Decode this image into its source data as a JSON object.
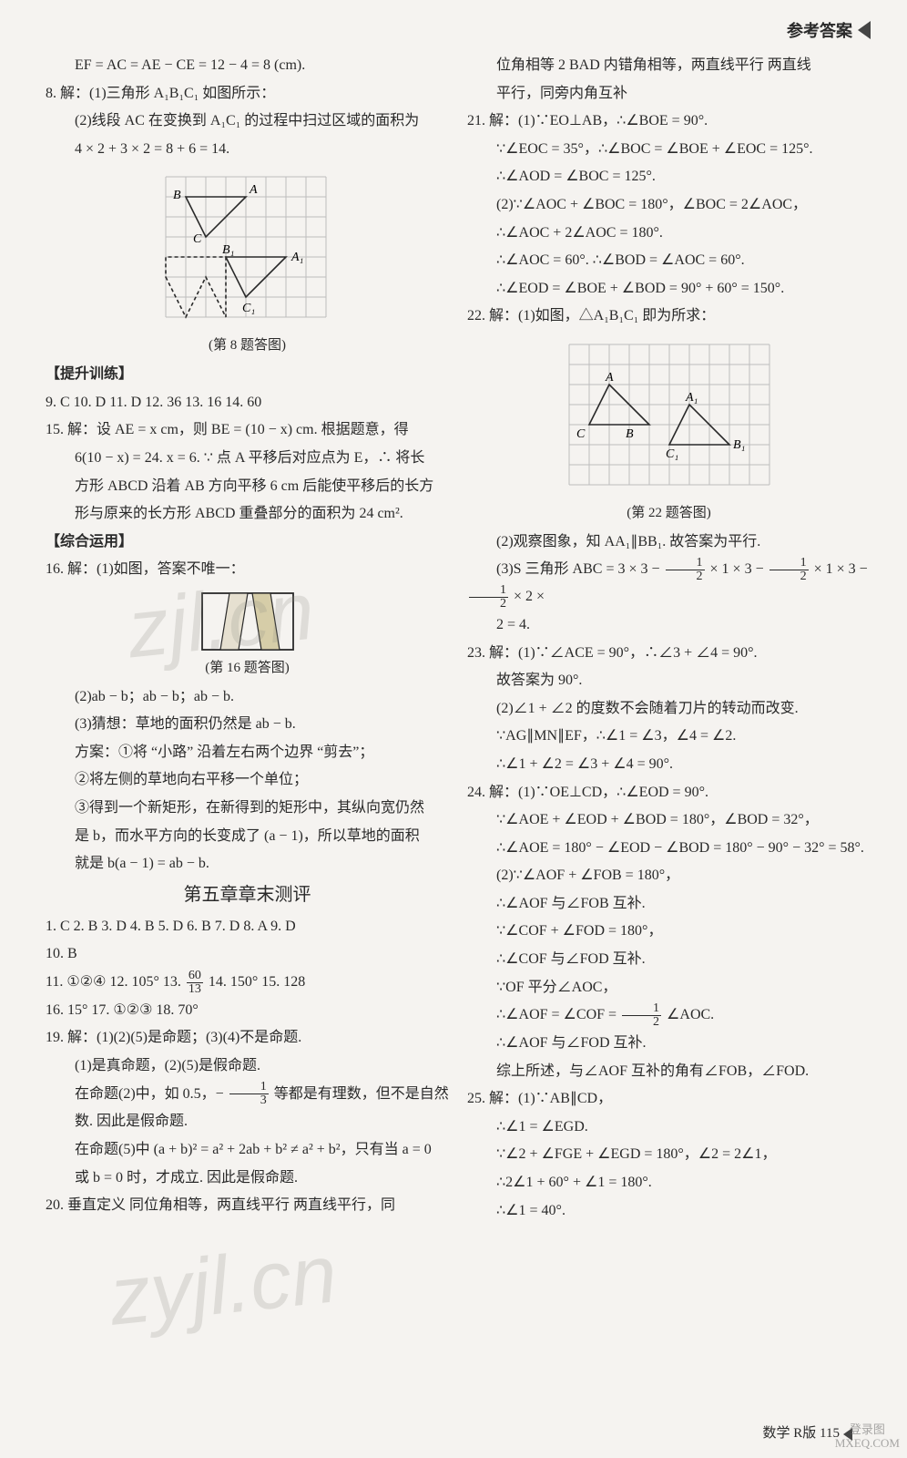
{
  "header": {
    "title": "参考答案"
  },
  "footer": {
    "page": "数学 R版 115",
    "badge_top": "登录图",
    "badge_bottom": "MXEQ.COM"
  },
  "watermark": {
    "wm1": "zjl.cn",
    "wm2": "zyjl.cn"
  },
  "left": {
    "l0": "EF = AC = AE − CE = 12 − 4 = 8  (cm).",
    "l1": "8. 解：(1)三角形 A₁B₁C₁ 如图所示：",
    "l2": "(2)线段 AC 在变换到 A₁C₁ 的过程中扫过区域的面积为",
    "l3": "4 × 2 + 3 × 2 = 8 + 6 = 14.",
    "fig8_caption": "(第 8 题答图)",
    "sec1": "【提升训练】",
    "l4": "9. C   10. D   11. D   12. 36   13. 16   14. 60",
    "l5": "15. 解：设 AE = x  cm，则 BE = (10 − x)  cm. 根据题意，得",
    "l6": "6(10 − x) = 24.  x = 6.  ∵ 点 A 平移后对应点为 E，∴ 将长",
    "l7": "方形 ABCD 沿着 AB 方向平移 6 cm 后能使平移后的长方",
    "l8": "形与原来的长方形 ABCD 重叠部分的面积为 24 cm².",
    "sec2": "【综合运用】",
    "l9": "16. 解：(1)如图，答案不唯一：",
    "fig16_caption": "(第 16 题答图)",
    "l10": "(2)ab − b；ab − b；ab − b.",
    "l11": "(3)猜想：草地的面积仍然是 ab − b.",
    "l12": "方案：①将 “小路” 沿着左右两个边界 “剪去”；",
    "l13": "②将左侧的草地向右平移一个单位；",
    "l14": "③得到一个新矩形，在新得到的矩形中，其纵向宽仍然",
    "l15": "是 b，而水平方向的长变成了 (a − 1)，所以草地的面积",
    "l16": "就是 b(a − 1) = ab − b.",
    "chapter": "第五章章末测评",
    "l17": "1. C   2. B   3. D   4. B   5. D   6. B   7. D   8. A   9. D",
    "l18": "10. B",
    "l19a": "11. ①②④   12. 105°   13. ",
    "l19b": "   14. 150°   15. 128",
    "frac_60_13_n": "60",
    "frac_60_13_d": "13",
    "l20": "16. 15°   17. ①②③   18. 70°",
    "l21": "19. 解：(1)(2)(5)是命题；(3)(4)不是命题.",
    "l22": "(1)是真命题，(2)(5)是假命题.",
    "l23a": "在命题(2)中，如 0.5，−",
    "l23b": "等都是有理数，但不是自然",
    "frac_1_3_n": "1",
    "frac_1_3_d": "3",
    "l24": "数. 因此是假命题.",
    "l25": "在命题(5)中  (a + b)² = a² + 2ab + b² ≠ a² + b²，只有当 a = 0",
    "l26": "或 b = 0 时，才成立. 因此是假命题.",
    "l27": "20. 垂直定义   同位角相等，两直线平行   两直线平行，同"
  },
  "right": {
    "r0": "位角相等   2   BAD   内错角相等，两直线平行   两直线",
    "r1": "平行，同旁内角互补",
    "r2": "21. 解：(1)∵EO⊥AB，∴∠BOE = 90°.",
    "r3": "∵∠EOC = 35°，∴∠BOC = ∠BOE + ∠EOC = 125°.",
    "r4": "∴∠AOD = ∠BOC = 125°.",
    "r5": "(2)∵∠AOC + ∠BOC = 180°，∠BOC = 2∠AOC，",
    "r6": "∴∠AOC + 2∠AOC = 180°.",
    "r7": "∴∠AOC = 60°. ∴∠BOD = ∠AOC = 60°.",
    "r8": "∴∠EOD = ∠BOE + ∠BOD = 90° + 60° = 150°.",
    "r9": "22. 解：(1)如图，△A₁B₁C₁ 即为所求：",
    "fig22_caption": "(第 22 题答图)",
    "r10": "(2)观察图象，知 AA₁∥BB₁. 故答案为平行.",
    "r11a": "(3)S 三角形 ABC = 3 × 3 − ",
    "r11b": " × 1 × 3 − ",
    "r11c": " × 1 × 3 − ",
    "r11d": " × 2 ×",
    "r12": "2 = 4.",
    "frac_1_2_n": "1",
    "frac_1_2_d": "2",
    "r13": "23. 解：(1)∵∠ACE = 90°，∴∠3 + ∠4 = 90°.",
    "r14": "故答案为 90°.",
    "r15": "(2)∠1 + ∠2 的度数不会随着刀片的转动而改变.",
    "r16": "∵AG∥MN∥EF，∴∠1 = ∠3，∠4 = ∠2.",
    "r17": "∴∠1 + ∠2 = ∠3 + ∠4 = 90°.",
    "r18": "24. 解：(1)∵OE⊥CD，∴∠EOD = 90°.",
    "r19": "∵∠AOE + ∠EOD + ∠BOD = 180°，∠BOD = 32°，",
    "r20": "∴∠AOE = 180° − ∠EOD − ∠BOD = 180° − 90° − 32° = 58°.",
    "r21": "(2)∵∠AOF + ∠FOB = 180°，",
    "r22": "∴∠AOF 与∠FOB 互补.",
    "r23": "∵∠COF + ∠FOD = 180°，",
    "r24": "∴∠COF 与∠FOD 互补.",
    "r25": "∵OF 平分∠AOC，",
    "r26a": "∴∠AOF = ∠COF = ",
    "r26b": "∠AOC.",
    "r27": "∴∠AOF 与∠FOD 互补.",
    "r28": "综上所述，与∠AOF 互补的角有∠FOB，∠FOD.",
    "r29": "25. 解：(1)∵AB∥CD，",
    "r30": "∴∠1 = ∠EGD.",
    "r31": "∵∠2 + ∠FGE + ∠EGD = 180°，∠2 = 2∠1，",
    "r32": "∴2∠1 + 60° + ∠1 = 180°.",
    "r33": "∴∠1 = 40°."
  },
  "fig8": {
    "grid_color": "#bdbdbd",
    "line_color": "#2a2a2a",
    "dash_color": "#2a2a2a",
    "cols": 8,
    "rows": 7,
    "cell": 22,
    "labels": {
      "B": "B",
      "A": "A",
      "C": "C",
      "B1": "B₁",
      "A1": "A₁",
      "C1": "C₁"
    },
    "tri_top": [
      [
        1,
        1
      ],
      [
        4,
        1
      ],
      [
        2,
        3
      ]
    ],
    "dashed_poly": [
      [
        0,
        5
      ],
      [
        1,
        7
      ],
      [
        2,
        5
      ],
      [
        3,
        7
      ],
      [
        3,
        4
      ],
      [
        0,
        4
      ]
    ],
    "tri_bot": [
      [
        3,
        4
      ],
      [
        6,
        4
      ],
      [
        4,
        6
      ]
    ]
  },
  "fig16": {
    "stroke": "#2a2a2a",
    "fill1": "#e6e0d0",
    "fill2": "#d6cda8",
    "w": 100,
    "h": 62
  },
  "fig22": {
    "grid_color": "#bdbdbd",
    "line_color": "#2a2a2a",
    "cols": 10,
    "rows": 7,
    "cell": 22,
    "labels": {
      "A": "A",
      "B": "B",
      "C": "C",
      "A1": "A₁",
      "B1": "B₁",
      "C1": "C₁"
    },
    "triABC": [
      [
        1,
        4
      ],
      [
        4,
        4
      ],
      [
        2,
        2
      ]
    ],
    "triA1B1C1": [
      [
        5,
        5
      ],
      [
        8,
        5
      ],
      [
        6,
        3
      ]
    ],
    "Bpos": [
      3,
      4
    ],
    "B1pos": [
      7,
      5
    ]
  }
}
